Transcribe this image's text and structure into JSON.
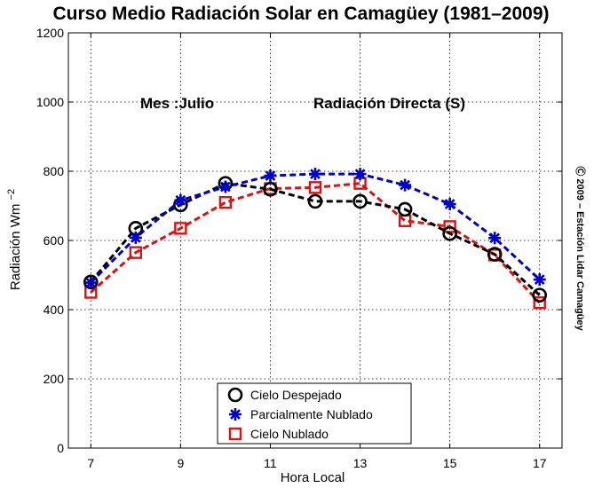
{
  "chart_data": {
    "type": "line",
    "title": "Curso Medio Radiación Solar en Camagüey (1981–2009)",
    "xlabel": "Hora Local",
    "ylabel": "Radiación Wm",
    "ylabel_superscript": "−2",
    "xlim": [
      6.5,
      17.5
    ],
    "ylim": [
      0,
      1200
    ],
    "x_ticks": [
      7,
      9,
      11,
      13,
      15,
      17
    ],
    "y_ticks": [
      0,
      200,
      400,
      600,
      800,
      1000,
      1200
    ],
    "grid": true,
    "legend_position": "bottom-center",
    "annotations": {
      "month": "Mes :Julio",
      "type": "Radiación Directa (S)"
    },
    "side_copyright": "Ⓒ 2009 – Estación Lidar Camagüey",
    "x": [
      7,
      8,
      9,
      10,
      11,
      12,
      13,
      14,
      15,
      16,
      17
    ],
    "series": [
      {
        "name": "Cielo Despejado",
        "color": "#000000",
        "marker": "circle",
        "values": [
          480,
          635,
          703,
          765,
          748,
          713,
          713,
          690,
          620,
          560,
          442
        ]
      },
      {
        "name": "Parcialmente Nublado",
        "color": "#0000cc",
        "marker": "asterisk",
        "values": [
          478,
          608,
          716,
          755,
          787,
          792,
          792,
          760,
          705,
          607,
          487
        ]
      },
      {
        "name": "Cielo Nublado",
        "color": "#dd1111",
        "marker": "square",
        "values": [
          450,
          565,
          635,
          710,
          750,
          753,
          765,
          657,
          640,
          558,
          420
        ]
      }
    ]
  }
}
